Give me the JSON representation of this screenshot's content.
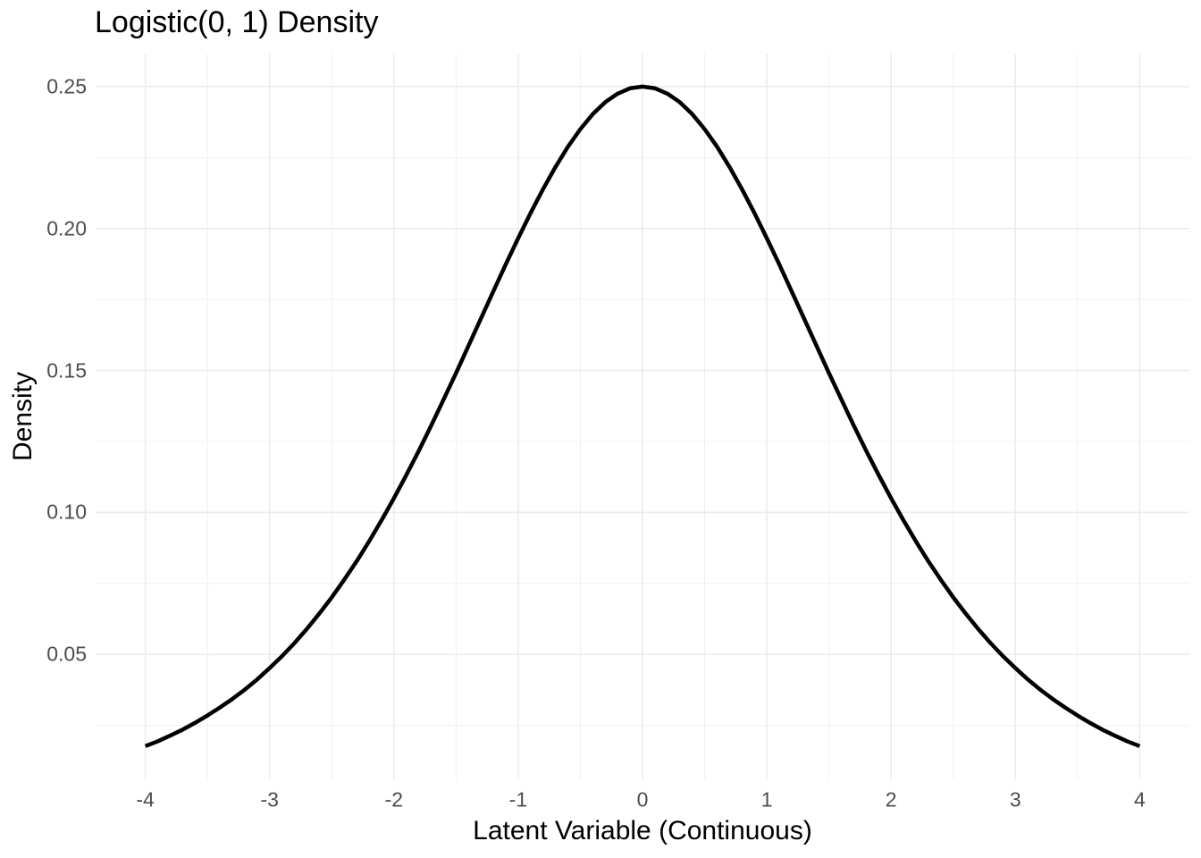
{
  "title": "Logistic(0, 1) Density",
  "chart_data": {
    "type": "line",
    "title": "Logistic(0, 1) Density",
    "xlabel": "Latent Variable (Continuous)",
    "ylabel": "Density",
    "xlim": [
      -4.4,
      4.4
    ],
    "ylim": [
      0.006,
      0.2616
    ],
    "grid": "major+minor",
    "legend": "none",
    "background": "#FFFFFF",
    "x_ticks": {
      "values": [
        -4,
        -3,
        -2,
        -1,
        0,
        1,
        2,
        3,
        4
      ],
      "labels": [
        "-4",
        "-3",
        "-2",
        "-1",
        "0",
        "1",
        "2",
        "3",
        "4"
      ],
      "minor": [
        -3.5,
        -2.5,
        -1.5,
        -0.5,
        0.5,
        1.5,
        2.5,
        3.5
      ]
    },
    "y_ticks": {
      "values": [
        0.05,
        0.1,
        0.15,
        0.2,
        0.25
      ],
      "labels": [
        "0.05",
        "0.10",
        "0.15",
        "0.20",
        "0.25"
      ],
      "minor": [
        0.025,
        0.075,
        0.125,
        0.175,
        0.225
      ]
    },
    "colors": {
      "line": "#000000",
      "grid_major": "#EBEBEB",
      "grid_minor": "#EFEFEF",
      "tick_label": "#4D4D4D",
      "text": "#000000"
    },
    "series": [
      {
        "name": "Logistic(0, 1) density",
        "color": "#000000",
        "x": [
          -4,
          -3.9,
          -3.8,
          -3.7,
          -3.6,
          -3.5,
          -3.4,
          -3.3,
          -3.2,
          -3.1,
          -3,
          -2.9,
          -2.8,
          -2.7,
          -2.6,
          -2.5,
          -2.4,
          -2.3,
          -2.2,
          -2.1,
          -2,
          -1.9,
          -1.8,
          -1.7,
          -1.6,
          -1.5,
          -1.4,
          -1.3,
          -1.2,
          -1.1,
          -1,
          -0.9,
          -0.8,
          -0.7,
          -0.6,
          -0.5,
          -0.4,
          -0.3,
          -0.2,
          -0.1,
          0,
          0.1,
          0.2,
          0.3,
          0.4,
          0.5,
          0.6,
          0.7,
          0.8,
          0.9,
          1,
          1.1,
          1.2,
          1.3,
          1.4,
          1.5,
          1.6,
          1.7,
          1.8,
          1.9,
          2,
          2.1,
          2.2,
          2.3,
          2.4,
          2.5,
          2.6,
          2.7,
          2.8,
          2.9,
          3,
          3.1,
          3.2,
          3.3,
          3.4,
          3.5,
          3.6,
          3.7,
          3.8,
          3.9,
          4
        ],
        "y": [
          0.0177,
          0.0194,
          0.0214,
          0.0235,
          0.0259,
          0.0285,
          0.0313,
          0.0343,
          0.0376,
          0.0412,
          0.0452,
          0.0494,
          0.054,
          0.059,
          0.0644,
          0.0701,
          0.0763,
          0.0828,
          0.0898,
          0.0972,
          0.105,
          0.1132,
          0.1217,
          0.1306,
          0.1398,
          0.1491,
          0.1587,
          0.1683,
          0.1779,
          0.1874,
          0.1966,
          0.2055,
          0.2139,
          0.2217,
          0.2288,
          0.235,
          0.2403,
          0.2445,
          0.2475,
          0.2494,
          0.25,
          0.2494,
          0.2475,
          0.2445,
          0.2403,
          0.235,
          0.2288,
          0.2217,
          0.2139,
          0.2055,
          0.1966,
          0.1874,
          0.1779,
          0.1683,
          0.1587,
          0.1491,
          0.1398,
          0.1306,
          0.1217,
          0.1132,
          0.105,
          0.0972,
          0.0898,
          0.0828,
          0.0763,
          0.0701,
          0.0644,
          0.059,
          0.054,
          0.0494,
          0.0452,
          0.0412,
          0.0376,
          0.0343,
          0.0313,
          0.0285,
          0.0259,
          0.0235,
          0.0214,
          0.0194,
          0.0177
        ]
      }
    ]
  }
}
